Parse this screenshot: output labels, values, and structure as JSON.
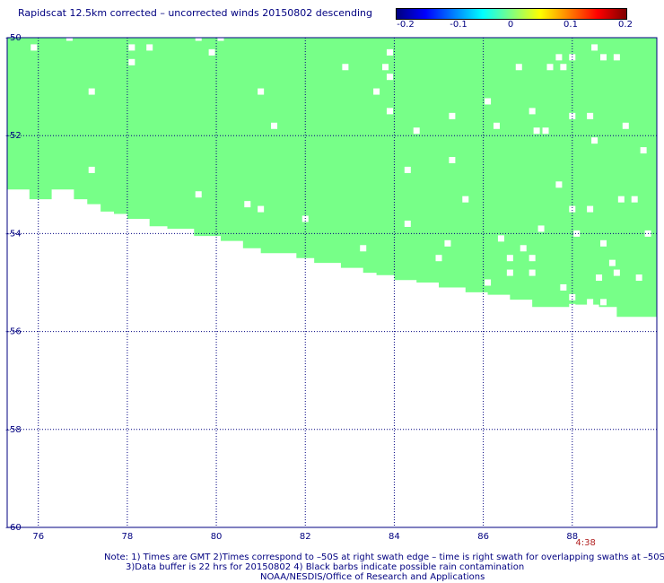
{
  "title": "Rapidscat 12.5km corrected – uncorrected winds 20150802 descending",
  "colorbar": {
    "ticks": [
      "-0.2",
      "-0.1",
      "0",
      "0.1",
      "0.2"
    ],
    "min": -0.2,
    "max": 0.2
  },
  "notes": {
    "line1": "Note: 1) Times are GMT 2)Times correspond to –50S at right swath edge – time is right swath for overlapping swaths at –50S",
    "line2": "3)Data buffer is 22 hrs for 20150802 4) Black barbs indicate possible rain contamination",
    "line3": "NOAA/NESDIS/Office of Research and Applications"
  },
  "chart_data": {
    "type": "heatmap",
    "x_ticks": [
      "76",
      "78",
      "80",
      "82",
      "84",
      "86",
      "88"
    ],
    "y_ticks": [
      "-50",
      "-52",
      "-54",
      "-56",
      "-58",
      "-60"
    ],
    "xlim": [
      75.3,
      89.9
    ],
    "ylim": [
      -60,
      -50
    ],
    "grid": true,
    "fill_color": "#77ff88",
    "swath_value": 0,
    "swath_lower_edge": [
      [
        75.3,
        -52.9
      ],
      [
        75.8,
        -53.1
      ],
      [
        76.3,
        -53.3
      ],
      [
        76.8,
        -53.1
      ],
      [
        77.1,
        -53.3
      ],
      [
        77.4,
        -53.4
      ],
      [
        77.7,
        -53.55
      ],
      [
        78.0,
        -53.6
      ],
      [
        78.5,
        -53.7
      ],
      [
        78.9,
        -53.85
      ],
      [
        79.5,
        -53.9
      ],
      [
        80.1,
        -54.05
      ],
      [
        80.6,
        -54.15
      ],
      [
        81.0,
        -54.3
      ],
      [
        81.8,
        -54.4
      ],
      [
        82.2,
        -54.5
      ],
      [
        82.8,
        -54.6
      ],
      [
        83.3,
        -54.7
      ],
      [
        83.6,
        -54.8
      ],
      [
        84.0,
        -54.85
      ],
      [
        84.5,
        -54.95
      ],
      [
        85.0,
        -55.0
      ],
      [
        85.6,
        -55.1
      ],
      [
        86.1,
        -55.2
      ],
      [
        86.6,
        -55.25
      ],
      [
        87.1,
        -55.35
      ],
      [
        88.0,
        -55.5
      ],
      [
        88.6,
        -55.45
      ],
      [
        89.0,
        -55.5
      ],
      [
        89.4,
        -55.7
      ],
      [
        89.9,
        -55.7
      ]
    ],
    "missing_cells": [
      [
        75.9,
        -50.2
      ],
      [
        76.7,
        -50.0
      ],
      [
        78.1,
        -50.2
      ],
      [
        78.5,
        -50.2
      ],
      [
        79.6,
        -50.0
      ],
      [
        79.9,
        -50.3
      ],
      [
        80.1,
        -50.0
      ],
      [
        78.1,
        -50.5
      ],
      [
        77.2,
        -51.1
      ],
      [
        81.0,
        -51.1
      ],
      [
        81.3,
        -51.8
      ],
      [
        82.9,
        -50.6
      ],
      [
        83.8,
        -50.6
      ],
      [
        83.9,
        -50.3
      ],
      [
        83.9,
        -50.8
      ],
      [
        83.6,
        -51.1
      ],
      [
        83.9,
        -51.5
      ],
      [
        84.5,
        -51.9
      ],
      [
        85.3,
        -51.6
      ],
      [
        86.1,
        -51.3
      ],
      [
        86.3,
        -51.8
      ],
      [
        86.8,
        -50.6
      ],
      [
        87.1,
        -51.5
      ],
      [
        87.2,
        -51.9
      ],
      [
        87.4,
        -51.9
      ],
      [
        87.5,
        -50.6
      ],
      [
        87.7,
        -50.4
      ],
      [
        87.8,
        -50.6
      ],
      [
        88.0,
        -50.4
      ],
      [
        88.0,
        -51.6
      ],
      [
        88.4,
        -51.6
      ],
      [
        88.5,
        -52.1
      ],
      [
        88.5,
        -50.2
      ],
      [
        88.7,
        -50.4
      ],
      [
        89.0,
        -50.4
      ],
      [
        89.2,
        -51.8
      ],
      [
        89.6,
        -52.3
      ],
      [
        87.7,
        -53.0
      ],
      [
        88.0,
        -53.5
      ],
      [
        88.4,
        -53.5
      ],
      [
        89.1,
        -53.3
      ],
      [
        89.4,
        -53.3
      ],
      [
        89.7,
        -54.0
      ],
      [
        88.1,
        -54.0
      ],
      [
        88.7,
        -54.2
      ],
      [
        85.2,
        -54.2
      ],
      [
        85.0,
        -54.5
      ],
      [
        83.3,
        -54.3
      ],
      [
        84.3,
        -53.8
      ],
      [
        84.3,
        -52.7
      ],
      [
        85.3,
        -52.5
      ],
      [
        85.6,
        -53.3
      ],
      [
        86.4,
        -54.1
      ],
      [
        86.6,
        -54.5
      ],
      [
        86.9,
        -54.3
      ],
      [
        87.1,
        -54.5
      ],
      [
        86.6,
        -54.8
      ],
      [
        87.1,
        -54.8
      ],
      [
        87.8,
        -55.1
      ],
      [
        88.0,
        -55.3
      ],
      [
        88.0,
        -55.5
      ],
      [
        88.4,
        -55.4
      ],
      [
        88.7,
        -55.4
      ],
      [
        88.6,
        -54.9
      ],
      [
        88.9,
        -54.6
      ],
      [
        89.0,
        -54.8
      ],
      [
        89.5,
        -54.9
      ],
      [
        87.3,
        -53.9
      ],
      [
        86.1,
        -55.0
      ],
      [
        84.7,
        -55.1
      ],
      [
        79.6,
        -53.2
      ],
      [
        80.7,
        -53.4
      ],
      [
        81.0,
        -53.5
      ],
      [
        82.0,
        -53.7
      ],
      [
        77.2,
        -52.7
      ]
    ],
    "time_labels": [
      {
        "x": 88.3,
        "text": "4:38"
      }
    ]
  }
}
